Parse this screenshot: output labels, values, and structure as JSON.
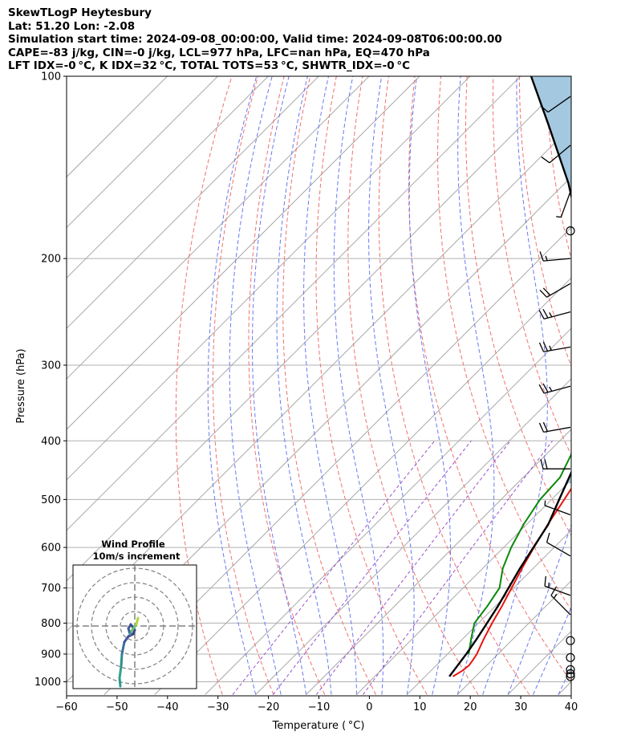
{
  "header": {
    "line1": "SkewTLogP Heytesbury",
    "line2": "Lat: 51.20   Lon: -2.08",
    "line3": "Simulation start time: 2024-09-08_00:00:00, Valid time: 2024-09-08T06:00:00.00",
    "line4": "CAPE=-83 j/kg, CIN=-0 j/kg, LCL=977 hPa, LFC=nan hPa, EQ=470 hPa",
    "line5": "LFT IDX=-0 °C, K IDX=32 °C, TOTAL TOTS=53 °C, SHWTR_IDX=-0 °C"
  },
  "chart_data": {
    "type": "line",
    "subtype": "skew-T log-P diagram",
    "xlabel": "Temperature ( °C)",
    "ylabel": "Pressure (hPa)",
    "xlim": [
      -60,
      40
    ],
    "ylim": [
      1050,
      100
    ],
    "y_scale": "log",
    "x_ticks": [
      -60,
      -50,
      -40,
      -30,
      -20,
      -10,
      0,
      10,
      20,
      30,
      40
    ],
    "x_tick_labels": [
      "−60",
      "−50",
      "−40",
      "−30",
      "−20",
      "−10",
      "0",
      "10",
      "20",
      "30",
      "40"
    ],
    "y_ticks": [
      1000,
      900,
      800,
      700,
      600,
      500,
      400,
      300,
      200,
      100
    ],
    "y_tick_labels": [
      "1000",
      "900",
      "800",
      "700",
      "600",
      "500",
      "400",
      "300",
      "200",
      "100"
    ],
    "grid": true,
    "series": [
      {
        "role": "temperature",
        "color": "#e8140f",
        "points": [
          [
            980,
            15.5
          ],
          [
            960,
            16.2
          ],
          [
            940,
            16.5
          ],
          [
            920,
            16.2
          ],
          [
            900,
            15.8
          ],
          [
            850,
            14.2
          ],
          [
            800,
            12.7
          ],
          [
            750,
            11.3
          ],
          [
            700,
            9.6
          ],
          [
            650,
            7.8
          ],
          [
            600,
            6.0
          ],
          [
            550,
            4.2
          ],
          [
            500,
            2.5
          ],
          [
            460,
            1.0
          ],
          [
            420,
            -0.3
          ],
          [
            380,
            -1.8
          ],
          [
            350,
            -3.0
          ],
          [
            330,
            -3.8
          ],
          [
            315,
            -4.5
          ],
          [
            300,
            -4.0
          ],
          [
            285,
            -2.0
          ],
          [
            270,
            0.5
          ],
          [
            255,
            2.5
          ],
          [
            230,
            3.8
          ],
          [
            200,
            4.5
          ],
          [
            180,
            5.0
          ],
          [
            160,
            6.5
          ],
          [
            145,
            8.0
          ],
          [
            130,
            9.7
          ],
          [
            115,
            11.2
          ],
          [
            100,
            13.8
          ]
        ]
      },
      {
        "role": "dewpoint",
        "color": "#0a8a0a",
        "points": [
          [
            900,
            14.2
          ],
          [
            850,
            11.7
          ],
          [
            800,
            9.2
          ],
          [
            750,
            8.4
          ],
          [
            700,
            7.2
          ],
          [
            650,
            4.0
          ],
          [
            600,
            1.5
          ],
          [
            550,
            -0.6
          ],
          [
            500,
            -2.3
          ],
          [
            460,
            -2.7
          ],
          [
            420,
            -5.1
          ],
          [
            400,
            -6.5
          ],
          [
            380,
            -8.4
          ],
          [
            350,
            -13.0
          ],
          [
            330,
            -15.0
          ],
          [
            300,
            -18.7
          ],
          [
            285,
            -21.3
          ],
          [
            270,
            -28.0
          ],
          [
            250,
            -29.5
          ],
          [
            220,
            -27.7
          ],
          [
            200,
            -27.0
          ],
          [
            185,
            -26.0
          ],
          [
            170,
            -26.5
          ],
          [
            160,
            -26.2
          ],
          [
            145,
            -23.5
          ],
          [
            130,
            -17.5
          ],
          [
            115,
            -12.5
          ],
          [
            100,
            -9.5
          ]
        ]
      },
      {
        "role": "parcel",
        "color": "#000000",
        "points": [
          [
            980,
            14.8
          ],
          [
            950,
            14.4
          ],
          [
            900,
            13.7
          ],
          [
            850,
            12.8
          ],
          [
            800,
            11.7
          ],
          [
            750,
            10.5
          ],
          [
            700,
            9.0
          ],
          [
            650,
            7.4
          ],
          [
            600,
            5.9
          ],
          [
            550,
            4.3
          ],
          [
            500,
            1.5
          ],
          [
            450,
            -1.5
          ],
          [
            400,
            -5.0
          ],
          [
            350,
            -11.0
          ],
          [
            300,
            -18.4
          ],
          [
            250,
            -28.1
          ],
          [
            200,
            -41.0
          ],
          [
            150,
            -59.4
          ],
          [
            120,
            -75.0
          ],
          [
            100,
            -87.9
          ]
        ]
      }
    ],
    "shaded_area": {
      "between": [
        "parcel",
        "temperature"
      ],
      "from_hpa": 470,
      "to_hpa": 100,
      "color": "#a4c8e0"
    },
    "reference_lines": {
      "isotherms": "gray solid",
      "dry_adiabats": "red dashed",
      "moist_adiabats": "blue dashed",
      "mixing_ratio": "purple dashed"
    },
    "wind_barbs": [
      {
        "p": 980,
        "speed": 0
      },
      {
        "p": 970,
        "speed": 0
      },
      {
        "p": 955,
        "speed": 0
      },
      {
        "p": 912,
        "speed": 0
      },
      {
        "p": 855,
        "speed": 0
      },
      {
        "p": 775,
        "speed": 15,
        "dir": 315
      },
      {
        "p": 720,
        "speed": 15,
        "dir": 290
      },
      {
        "p": 620,
        "speed": 10,
        "dir": 300
      },
      {
        "p": 530,
        "speed": 5,
        "dir": 290
      },
      {
        "p": 445,
        "speed": 20,
        "dir": 270
      },
      {
        "p": 380,
        "speed": 20,
        "dir": 260
      },
      {
        "p": 325,
        "speed": 25,
        "dir": 255
      },
      {
        "p": 280,
        "speed": 25,
        "dir": 260
      },
      {
        "p": 245,
        "speed": 25,
        "dir": 255
      },
      {
        "p": 220,
        "speed": 20,
        "dir": 240
      },
      {
        "p": 200,
        "speed": 15,
        "dir": 265
      },
      {
        "p": 180,
        "speed": 0
      },
      {
        "p": 155,
        "speed": 5,
        "dir": 200
      },
      {
        "p": 130,
        "speed": 10,
        "dir": 230
      },
      {
        "p": 108,
        "speed": 10,
        "dir": 235
      }
    ]
  },
  "inset": {
    "title": "Wind Profile",
    "subtitle": "10m/s increment"
  }
}
